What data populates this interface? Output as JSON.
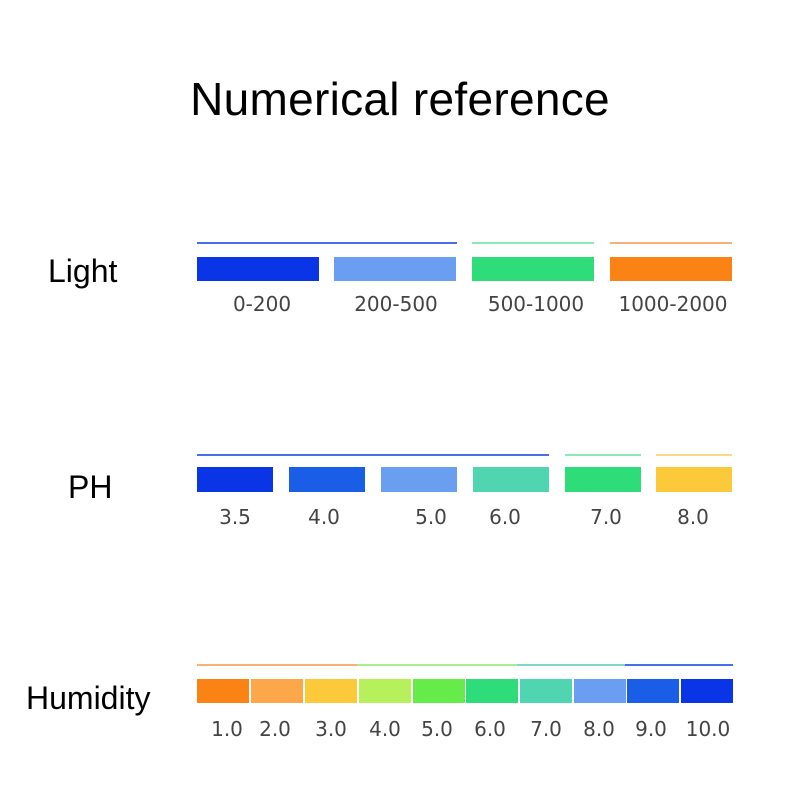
{
  "title": "Numerical reference",
  "sections": [
    {
      "label": "Light",
      "items": [
        {
          "value": "0-200",
          "color": "#0a35e6"
        },
        {
          "value": "200-500",
          "color": "#6a9ef0"
        },
        {
          "value": "500-1000",
          "color": "#2edc7a"
        },
        {
          "value": "1000-2000",
          "color": "#fb8214"
        }
      ]
    },
    {
      "label": "PH",
      "items": [
        {
          "value": "3.5",
          "color": "#0a35e6"
        },
        {
          "value": "4.0",
          "color": "#1a5ee8"
        },
        {
          "value": "5.0",
          "color": "#6a9ef0"
        },
        {
          "value": "6.0",
          "color": "#4fd6b0"
        },
        {
          "value": "7.0",
          "color": "#2edc7a"
        },
        {
          "value": "8.0",
          "color": "#fcc93a"
        }
      ]
    },
    {
      "label": "Humidity",
      "items": [
        {
          "value": "1.0",
          "color": "#fb8214"
        },
        {
          "value": "2.0",
          "color": "#fca84a"
        },
        {
          "value": "3.0",
          "color": "#fcc93a"
        },
        {
          "value": "4.0",
          "color": "#b6f05a"
        },
        {
          "value": "5.0",
          "color": "#66ec4a"
        },
        {
          "value": "6.0",
          "color": "#2edc7a"
        },
        {
          "value": "7.0",
          "color": "#4fd6b0"
        },
        {
          "value": "8.0",
          "color": "#6a9ef0"
        },
        {
          "value": "9.0",
          "color": "#1a5ee8"
        },
        {
          "value": "10.0",
          "color": "#0a35e6"
        }
      ]
    }
  ]
}
